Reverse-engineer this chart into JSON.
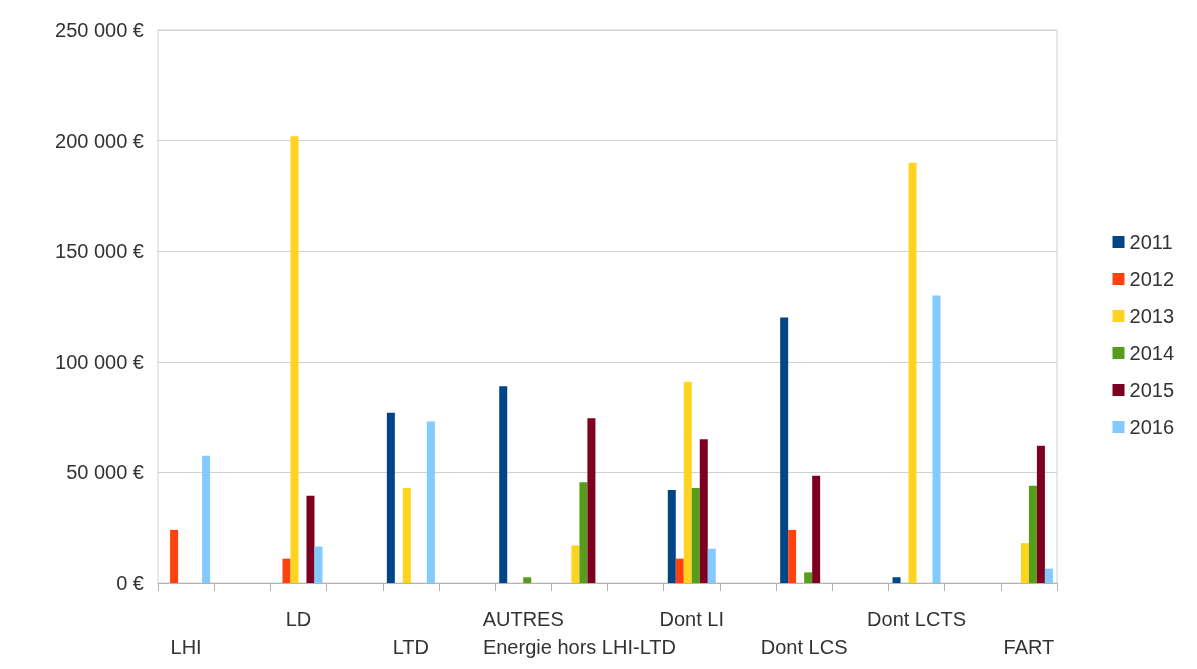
{
  "chart_data": {
    "type": "bar",
    "categories": [
      "LHI",
      null,
      "LD",
      null,
      "LTD",
      null,
      "AUTRES",
      "Energie hors LHI-LTD",
      null,
      "Dont LI",
      null,
      "Dont LCS",
      null,
      "Dont LCTS",
      null,
      "FART"
    ],
    "series": [
      {
        "name": "2011",
        "color": "#004586",
        "values": [
          null,
          null,
          null,
          null,
          77000,
          null,
          89000,
          null,
          null,
          42000,
          null,
          120000,
          null,
          2600,
          null,
          null
        ]
      },
      {
        "name": "2012",
        "color": "#ff420e",
        "values": [
          24000,
          null,
          11000,
          null,
          null,
          null,
          null,
          null,
          null,
          11000,
          null,
          24000,
          null,
          null,
          null,
          null
        ]
      },
      {
        "name": "2013",
        "color": "#ffd320",
        "values": [
          null,
          null,
          202000,
          null,
          43000,
          null,
          null,
          17000,
          null,
          91000,
          null,
          null,
          null,
          190000,
          null,
          18000
        ]
      },
      {
        "name": "2014",
        "color": "#579d1c",
        "values": [
          null,
          null,
          null,
          null,
          null,
          null,
          2600,
          45500,
          null,
          43000,
          null,
          4800,
          null,
          null,
          null,
          44000
        ]
      },
      {
        "name": "2015",
        "color": "#7e0021",
        "values": [
          null,
          null,
          39500,
          null,
          null,
          null,
          null,
          74500,
          null,
          65000,
          null,
          48500,
          null,
          null,
          null,
          62000
        ]
      },
      {
        "name": "2016",
        "color": "#83caff",
        "values": [
          57500,
          null,
          16500,
          null,
          73000,
          null,
          null,
          null,
          null,
          15500,
          null,
          null,
          null,
          130000,
          null,
          6500
        ]
      }
    ],
    "ylim": [
      0,
      250000
    ],
    "yticks": [
      {
        "value": 0,
        "label": "0 €"
      },
      {
        "value": 50000,
        "label": "50 000 €"
      },
      {
        "value": 100000,
        "label": "100 000 €"
      },
      {
        "value": 150000,
        "label": "150 000 €"
      },
      {
        "value": 200000,
        "label": "200 000 €"
      },
      {
        "value": 250000,
        "label": "250 000 €"
      }
    ],
    "grid": "y",
    "legend": "right"
  }
}
